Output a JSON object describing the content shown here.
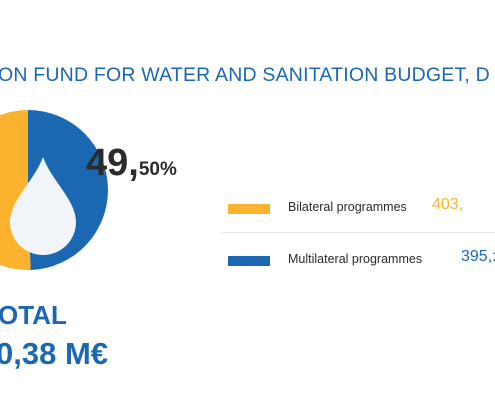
{
  "title": "ON FUND FOR WATER AND SANITATION BUDGET, D",
  "colors": {
    "bilateral": "#fbb22e",
    "multilateral": "#1b67b1",
    "drop": "#f1f5fa"
  },
  "icon": "water-drop-icon",
  "percent_label": {
    "whole": "49,",
    "fraction": "50%"
  },
  "total": {
    "label": "OTAL",
    "value": "0,38 M€"
  },
  "legend": [
    {
      "label": "Bilateral programmes",
      "value": "403,"
    },
    {
      "label": "Multilateral programmes",
      "value": "395,:"
    }
  ],
  "chart_data": {
    "type": "pie",
    "title": "ON FUND FOR WATER AND SANITATION BUDGET, D",
    "slices": [
      {
        "name": "Bilateral programmes",
        "value": 50.5,
        "color": "#fbb22e"
      },
      {
        "name": "Multilateral programmes",
        "value": 49.5,
        "color": "#1b67b1"
      }
    ],
    "data_labels": [
      "49,50%"
    ]
  }
}
